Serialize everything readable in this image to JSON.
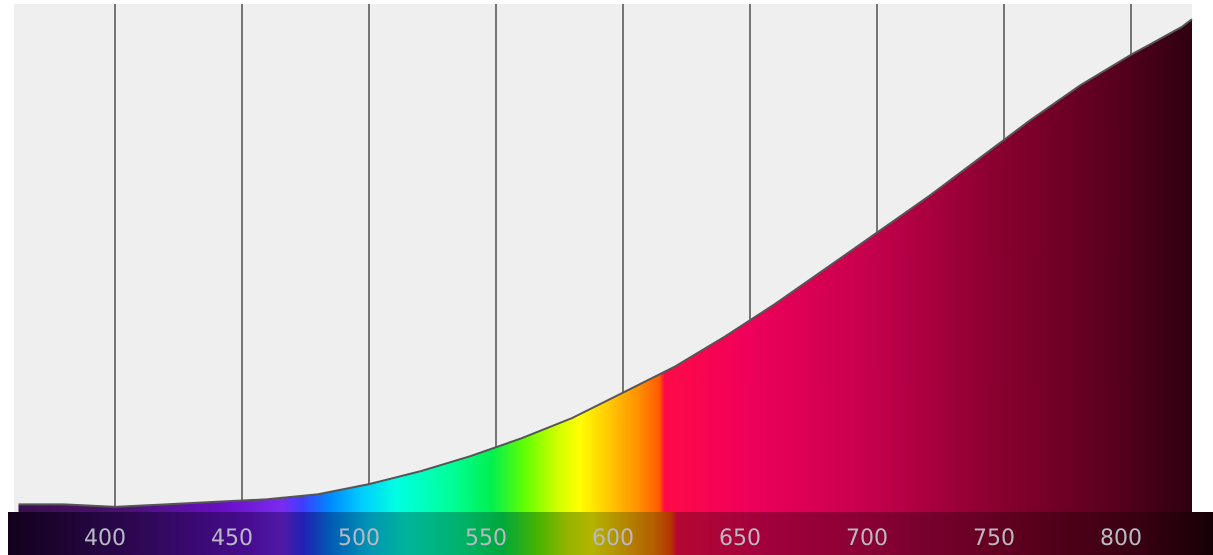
{
  "chart_data": {
    "type": "area",
    "title": "",
    "xlabel": "",
    "ylabel": "",
    "xlim": [
      360,
      835
    ],
    "ylim": [
      0,
      100
    ],
    "grid": "vertical",
    "x_ticks": [
      400,
      450,
      500,
      550,
      600,
      650,
      700,
      750,
      800
    ],
    "tick_labels": [
      "400",
      "450",
      "500",
      "550",
      "600",
      "650",
      "700",
      "750",
      "800"
    ],
    "series": [
      {
        "x": [
          362,
          380,
          400,
          420,
          440,
          460,
          480,
          500,
          520,
          540,
          560,
          580,
          600,
          610,
          620,
          640,
          660,
          680,
          700,
          720,
          740,
          760,
          780,
          800,
          820,
          824
        ],
        "values": [
          1.5,
          1.5,
          1.0,
          1.5,
          2.0,
          2.5,
          3.5,
          5.5,
          8.0,
          11.0,
          14.5,
          18.5,
          23.5,
          26.0,
          28.5,
          34.5,
          41.0,
          48.0,
          55.0,
          62.0,
          69.5,
          77.0,
          84.0,
          90.0,
          95.5,
          97.0
        ]
      }
    ],
    "colors": {
      "plot_background": "#efefef",
      "grid_line": "#767676",
      "curve_line": "#555555",
      "axis_band": "#3a3a3a"
    }
  }
}
